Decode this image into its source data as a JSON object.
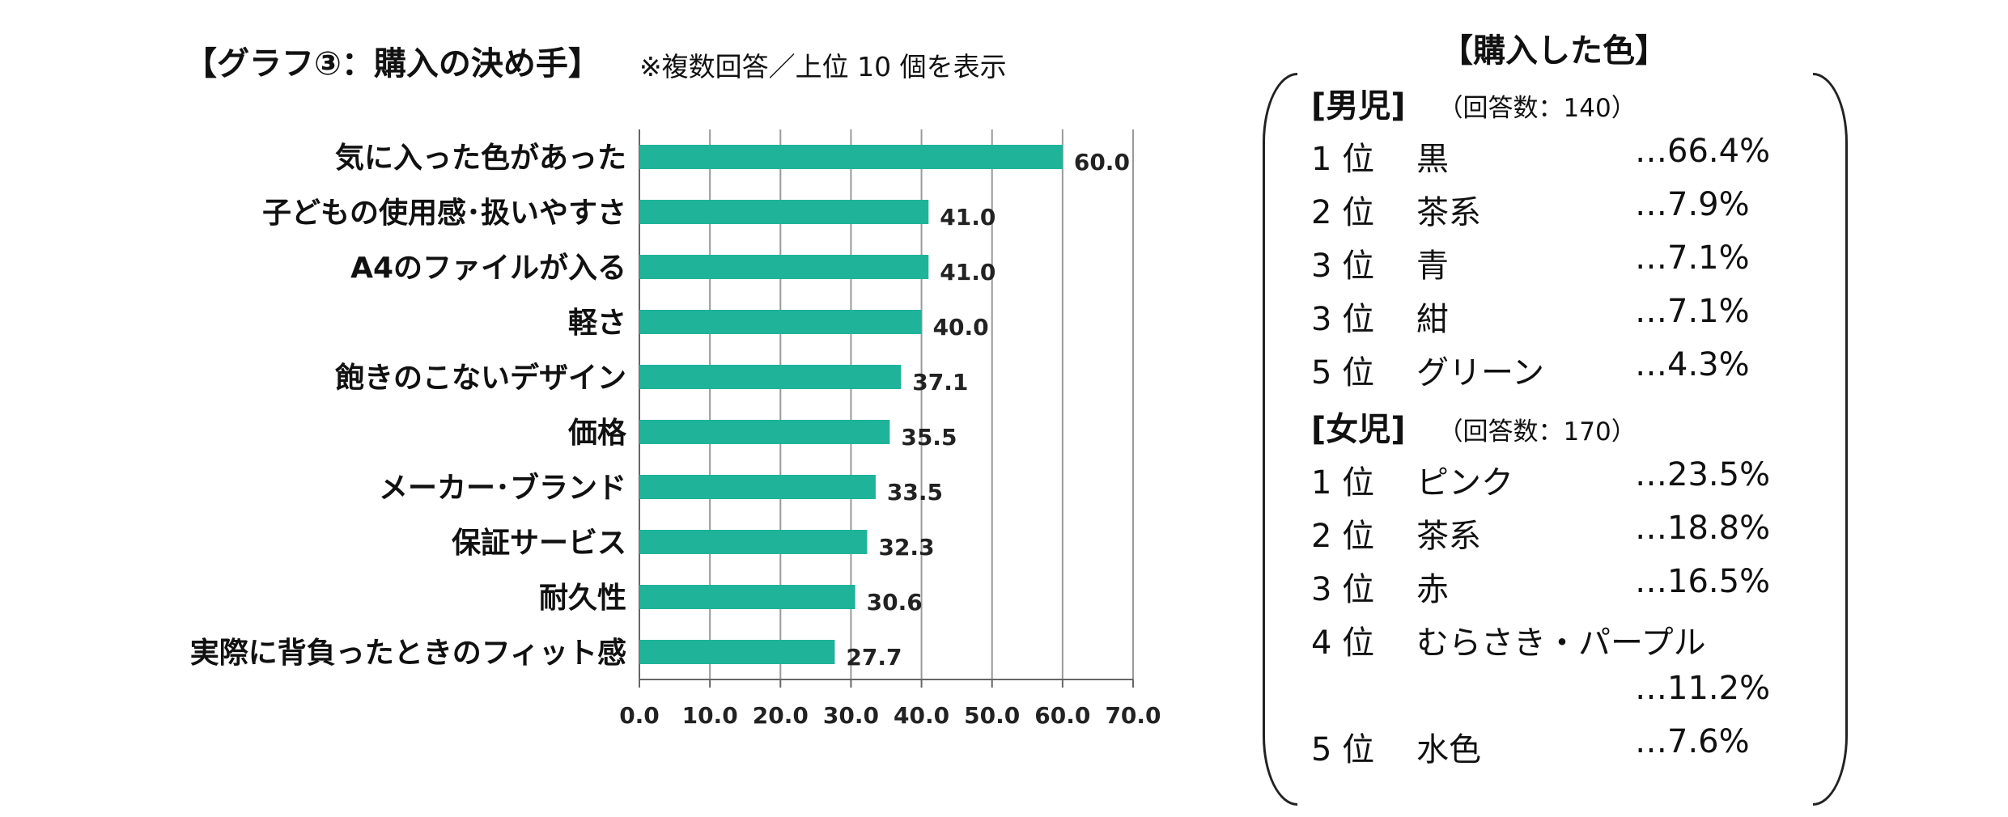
{
  "chart_data": {
    "type": "bar",
    "orientation": "horizontal",
    "title": "【グラフ③：購入の決め手】",
    "subtitle": "※複数回答／上位 10 個を表示",
    "categories": [
      "気に入った色があった",
      "子どもの使用感･扱いやすさ",
      "A4のファイルが入る",
      "軽さ",
      "飽きのこないデザイン",
      "価格",
      "メーカー･ブランド",
      "保証サービス",
      "耐久性",
      "実際に背負ったときのフィット感"
    ],
    "values": [
      60.0,
      41.0,
      41.0,
      40.0,
      37.1,
      35.5,
      33.5,
      32.3,
      30.6,
      27.7
    ],
    "xlim": [
      0,
      70
    ],
    "ticks": [
      "0.0",
      "10.0",
      "20.0",
      "30.0",
      "40.0",
      "50.0",
      "60.0",
      "70.0"
    ],
    "grid": true,
    "bar_color": "#1fb39a"
  },
  "panel": {
    "title": "【購入した色】",
    "sections": [
      {
        "name": "[男児]",
        "count": "（回答数：140）",
        "items": [
          {
            "rank": "1 位",
            "color": "黒",
            "pct": "…66.4%"
          },
          {
            "rank": "2 位",
            "color": "茶系",
            "pct": "…7.9%"
          },
          {
            "rank": "3 位",
            "color": "青",
            "pct": "…7.1%"
          },
          {
            "rank": "3 位",
            "color": "紺",
            "pct": "…7.1%"
          },
          {
            "rank": "5 位",
            "color": "グリーン",
            "pct": "…4.3%"
          }
        ]
      },
      {
        "name": "[女児]",
        "count": "（回答数：170）",
        "items": [
          {
            "rank": "1 位",
            "color": "ピンク",
            "pct": "…23.5%"
          },
          {
            "rank": "2 位",
            "color": "茶系",
            "pct": "…18.8%"
          },
          {
            "rank": "3 位",
            "color": "赤",
            "pct": "…16.5%"
          },
          {
            "rank": "4 位",
            "color": "むらさき・パープル",
            "pct": "…11.2%"
          },
          {
            "rank": "5 位",
            "color": "水色",
            "pct": "…7.6%"
          }
        ]
      }
    ]
  }
}
